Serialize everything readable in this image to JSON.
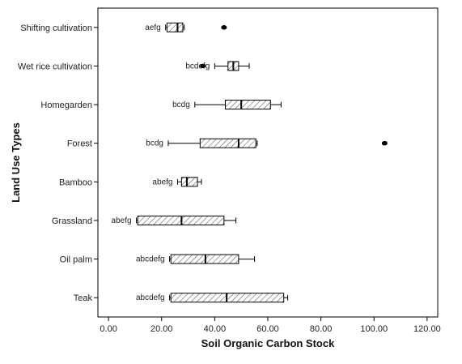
{
  "chart_data": {
    "type": "boxplot",
    "orientation": "horizontal",
    "xlabel": "Soil Organic Carbon Stock",
    "ylabel": "Land Use Types",
    "xlim": [
      -4,
      124
    ],
    "x_ticks": [
      0,
      20,
      40,
      60,
      80,
      100,
      120
    ],
    "x_tick_labels": [
      "0.00",
      "20.00",
      "40.00",
      "60.00",
      "80.00",
      "100.00",
      "120.00"
    ],
    "grid": false,
    "categories": [
      {
        "name": "Shifting cultivation",
        "group": "aefg",
        "whisker_low": 21.5,
        "q1": 22,
        "median": 26,
        "q3": 28,
        "whisker_high": 28.5,
        "outliers": [
          43.5
        ]
      },
      {
        "name": "Wet rice cultivation",
        "group": "bcdefg",
        "whisker_low": 40,
        "q1": 45,
        "median": 47,
        "q3": 49,
        "whisker_high": 53,
        "outliers": [
          35.5
        ]
      },
      {
        "name": "Homegarden",
        "group": "bcdg",
        "whisker_low": 32.5,
        "q1": 44,
        "median": 50,
        "q3": 61,
        "whisker_high": 65,
        "outliers": []
      },
      {
        "name": "Forest",
        "group": "bcdg",
        "whisker_low": 22.5,
        "q1": 34.5,
        "median": 49,
        "q3": 55.5,
        "whisker_high": 56,
        "outliers": [
          104
        ]
      },
      {
        "name": "Bamboo",
        "group": "abefg",
        "whisker_low": 26,
        "q1": 27.5,
        "median": 29.5,
        "q3": 33.5,
        "whisker_high": 35,
        "outliers": []
      },
      {
        "name": "Grassland",
        "group": "abefg",
        "whisker_low": 10.5,
        "q1": 11,
        "median": 27.5,
        "q3": 43.5,
        "whisker_high": 48,
        "outliers": []
      },
      {
        "name": "Oil palm",
        "group": "abcdefg",
        "whisker_low": 23,
        "q1": 23.5,
        "median": 36.5,
        "q3": 49,
        "whisker_high": 55,
        "outliers": []
      },
      {
        "name": "Teak",
        "group": "abcdefg",
        "whisker_low": 23,
        "q1": 23.5,
        "median": 44.5,
        "q3": 66,
        "whisker_high": 67.5,
        "outliers": []
      }
    ]
  }
}
